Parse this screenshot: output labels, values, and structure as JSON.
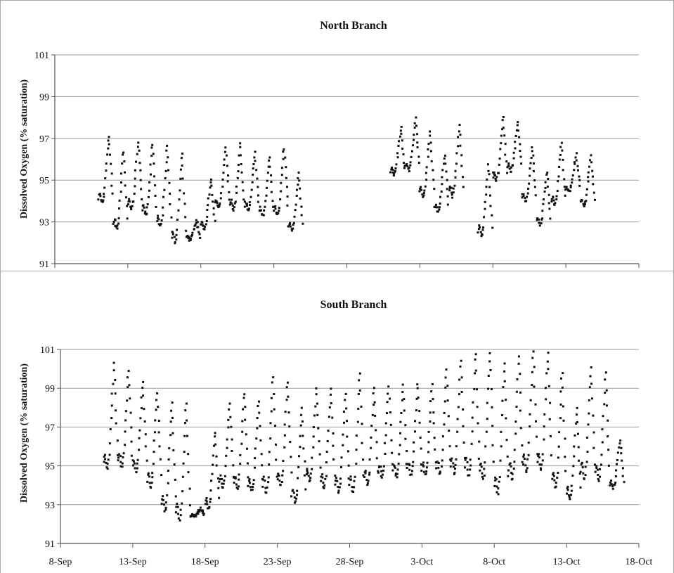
{
  "chart_data": [
    {
      "type": "scatter",
      "title": "North Branch",
      "xlabel": "",
      "ylabel": "Dissolved Oxygen (% saturation)",
      "ylim": [
        91,
        101
      ],
      "yticks": [
        "91",
        "93",
        "95",
        "97",
        "99",
        "101"
      ],
      "xlim": [
        "8-Sep",
        "18-Oct"
      ],
      "grid": true,
      "marker_color": "#111111",
      "series": [
        {
          "values_note": "daily min/max of diel cycle",
          "days": [
            {
              "date": "11-Sep",
              "min": 93.7,
              "max": 97.2
            },
            {
              "date": "12-Sep",
              "min": 92.4,
              "max": 96.5
            },
            {
              "date": "13-Sep",
              "min": 93.4,
              "max": 96.9
            },
            {
              "date": "14-Sep",
              "min": 93.1,
              "max": 96.8
            },
            {
              "date": "15-Sep",
              "min": 92.5,
              "max": 96.7
            },
            {
              "date": "16-Sep",
              "min": 91.7,
              "max": 96.4
            },
            {
              "date": "17-Sep",
              "min": 92.1,
              "max": 93.1
            },
            {
              "date": "18-Sep",
              "min": 92.5,
              "max": 95.1
            },
            {
              "date": "19-Sep",
              "min": 93.5,
              "max": 96.6
            },
            {
              "date": "20-Sep",
              "min": 93.4,
              "max": 96.8
            },
            {
              "date": "21-Sep",
              "min": 93.4,
              "max": 96.4
            },
            {
              "date": "22-Sep",
              "min": 93.1,
              "max": 96.2
            },
            {
              "date": "23-Sep",
              "min": 93.1,
              "max": 96.6
            },
            {
              "date": "24-Sep",
              "min": 92.4,
              "max": 95.4
            },
            {
              "date": "1-Oct",
              "min": 95.1,
              "max": 97.6
            },
            {
              "date": "2-Oct",
              "min": 95.3,
              "max": 98.0
            },
            {
              "date": "3-Oct",
              "min": 94.0,
              "max": 97.4
            },
            {
              "date": "4-Oct",
              "min": 93.3,
              "max": 96.3
            },
            {
              "date": "5-Oct",
              "min": 94.0,
              "max": 97.7
            },
            {
              "date": "7-Oct",
              "min": 92.1,
              "max": 95.8
            },
            {
              "date": "8-Oct",
              "min": 94.8,
              "max": 98.1
            },
            {
              "date": "9-Oct",
              "min": 95.3,
              "max": 97.8
            },
            {
              "date": "10-Oct",
              "min": 93.8,
              "max": 96.6
            },
            {
              "date": "11-Oct",
              "min": 92.7,
              "max": 95.5
            },
            {
              "date": "12-Oct",
              "min": 93.6,
              "max": 96.9
            },
            {
              "date": "13-Oct",
              "min": 94.3,
              "max": 96.3
            },
            {
              "date": "14-Oct",
              "min": 93.6,
              "max": 96.2
            }
          ]
        }
      ]
    },
    {
      "type": "scatter",
      "title": "South Branch",
      "xlabel": "",
      "ylabel": "Dissolved Oxygen (% saturation)",
      "ylim": [
        91,
        101
      ],
      "yticks": [
        "91",
        "93",
        "95",
        "97",
        "99",
        "101"
      ],
      "xticks": [
        "8-Sep",
        "13-Sep",
        "18-Sep",
        "23-Sep",
        "28-Sep",
        "3-Oct",
        "8-Oct",
        "13-Oct",
        "18-Oct"
      ],
      "xlim": [
        "8-Sep",
        "18-Oct"
      ],
      "grid": true,
      "marker_color": "#111111",
      "series": [
        {
          "values_note": "daily min/max of diel cycle",
          "days": [
            {
              "date": "11-Sep",
              "min": 94.5,
              "max": 100.4
            },
            {
              "date": "12-Sep",
              "min": 94.6,
              "max": 100.0
            },
            {
              "date": "13-Sep",
              "min": 94.4,
              "max": 99.4
            },
            {
              "date": "14-Sep",
              "min": 93.6,
              "max": 98.9
            },
            {
              "date": "15-Sep",
              "min": 92.3,
              "max": 98.4
            },
            {
              "date": "16-Sep",
              "min": 91.8,
              "max": 98.4
            },
            {
              "date": "17-Sep",
              "min": 92.4,
              "max": 92.8
            },
            {
              "date": "18-Sep",
              "min": 92.5,
              "max": 96.8
            },
            {
              "date": "19-Sep",
              "min": 93.6,
              "max": 98.3
            },
            {
              "date": "20-Sep",
              "min": 93.5,
              "max": 98.9
            },
            {
              "date": "21-Sep",
              "min": 93.4,
              "max": 98.5
            },
            {
              "date": "22-Sep",
              "min": 93.2,
              "max": 99.8
            },
            {
              "date": "23-Sep",
              "min": 93.6,
              "max": 99.5
            },
            {
              "date": "24-Sep",
              "min": 92.8,
              "max": 98.1
            },
            {
              "date": "25-Sep",
              "min": 93.9,
              "max": 99.1
            },
            {
              "date": "26-Sep",
              "min": 93.5,
              "max": 99.1
            },
            {
              "date": "27-Sep",
              "min": 93.3,
              "max": 98.9
            },
            {
              "date": "28-Sep",
              "min": 93.2,
              "max": 100.0
            },
            {
              "date": "29-Sep",
              "min": 93.7,
              "max": 99.2
            },
            {
              "date": "30-Sep",
              "min": 94.1,
              "max": 99.2
            },
            {
              "date": "1-Oct",
              "min": 94.1,
              "max": 99.3
            },
            {
              "date": "2-Oct",
              "min": 94.2,
              "max": 99.4
            },
            {
              "date": "3-Oct",
              "min": 94.2,
              "max": 99.3
            },
            {
              "date": "4-Oct",
              "min": 94.2,
              "max": 100.1
            },
            {
              "date": "5-Oct",
              "min": 94.2,
              "max": 100.6
            },
            {
              "date": "6-Oct",
              "min": 94.1,
              "max": 101.0
            },
            {
              "date": "7-Oct",
              "min": 93.9,
              "max": 101.0
            },
            {
              "date": "8-Oct",
              "min": 93.1,
              "max": 100.5
            },
            {
              "date": "9-Oct",
              "min": 93.9,
              "max": 100.8
            },
            {
              "date": "10-Oct",
              "min": 94.3,
              "max": 101.1
            },
            {
              "date": "11-Oct",
              "min": 94.4,
              "max": 101.0
            },
            {
              "date": "12-Oct",
              "min": 93.5,
              "max": 100.0
            },
            {
              "date": "13-Oct",
              "min": 93.0,
              "max": 98.1
            },
            {
              "date": "14-Oct",
              "min": 94.0,
              "max": 100.2
            },
            {
              "date": "15-Oct",
              "min": 93.9,
              "max": 99.9
            },
            {
              "date": "16-Oct",
              "min": 93.7,
              "max": 96.4
            }
          ]
        }
      ]
    }
  ]
}
